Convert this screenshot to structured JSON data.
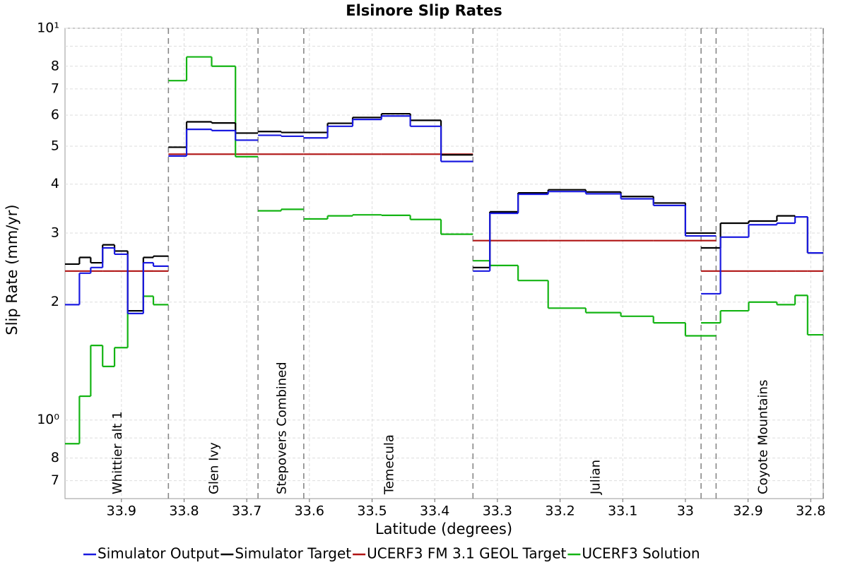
{
  "chart_data": {
    "type": "step",
    "title": "Elsinore Slip Rates",
    "x_label": "Latitude (degrees)",
    "y_label": "Slip Rate (mm/yr)",
    "log_y": true,
    "grid": true,
    "legend": "bottom",
    "xlim": [
      33.99,
      32.78
    ],
    "xticks": [
      33.9,
      33.8,
      33.7,
      33.6,
      33.5,
      33.4,
      33.3,
      33.2,
      33.1,
      {
        "value": 33.0,
        "label": "33"
      },
      32.9,
      32.8
    ],
    "ylim": [
      0.63,
      10
    ],
    "yticks": [
      {
        "value": 0.7,
        "label": "7"
      },
      {
        "value": 0.8,
        "label": "8"
      },
      {
        "value": 1,
        "label": "10⁰"
      },
      2,
      3,
      4,
      5,
      6,
      7,
      8,
      {
        "value": 10,
        "label": "10¹"
      }
    ],
    "yminor": [
      0.9,
      9
    ],
    "sections": [
      {
        "label": "Whittier alt 1",
        "edges": [
          33.99,
          33.967,
          33.949,
          33.93,
          33.911,
          33.89,
          33.865,
          33.849,
          33.825
        ]
      },
      {
        "label": "Glen Ivy",
        "edges": [
          33.825,
          33.796,
          33.756,
          33.718,
          33.682
        ]
      },
      {
        "label": "Stepovers Combined",
        "edges": [
          33.682,
          33.645,
          33.609
        ]
      },
      {
        "label": "Temecula",
        "edges": [
          33.609,
          33.571,
          33.531,
          33.485,
          33.439,
          33.39,
          33.339
        ]
      },
      {
        "label": "Julian",
        "edges": [
          33.339,
          33.312,
          33.267,
          33.219,
          33.159,
          33.103,
          33.051,
          33.0,
          32.951
        ]
      },
      {
        "label": "Coyote Mountains",
        "edges": [
          32.975,
          32.944,
          32.899,
          32.854,
          32.825,
          32.805,
          32.78
        ]
      }
    ],
    "series": [
      {
        "name": "Simulator Output",
        "color": "#1a1ae0",
        "values": [
          [
            1.97,
            2.37,
            2.45,
            2.75,
            2.65,
            1.87,
            2.52,
            2.47
          ],
          [
            4.72,
            5.52,
            5.48,
            5.18
          ],
          [
            5.33,
            5.3
          ],
          [
            5.25,
            5.62,
            5.85,
            5.97,
            5.62,
            4.57
          ],
          [
            2.4,
            3.37,
            3.77,
            3.83,
            3.78,
            3.67,
            3.53,
            2.95
          ],
          [
            2.1,
            2.93,
            3.15,
            3.18,
            3.3,
            2.67
          ]
        ]
      },
      {
        "name": "Simulator Target",
        "color": "#000000",
        "values": [
          [
            2.5,
            2.6,
            2.52,
            2.8,
            2.7,
            1.9,
            2.6,
            2.62
          ],
          [
            4.97,
            5.77,
            5.73,
            5.4
          ],
          [
            5.45,
            5.42
          ],
          [
            5.42,
            5.72,
            5.92,
            6.05,
            5.82,
            4.75
          ],
          [
            2.45,
            3.4,
            3.8,
            3.87,
            3.82,
            3.72,
            3.58,
            3.0
          ],
          [
            2.75,
            3.18,
            3.22,
            3.32,
            3.3,
            2.67
          ]
        ]
      },
      {
        "name": "UCERF3 FM 3.1 GEOL Target",
        "color": "#b01414",
        "values": [
          [
            2.4,
            2.4,
            2.4,
            2.4,
            2.4,
            2.4,
            2.4,
            2.4
          ],
          [
            4.77,
            4.77,
            4.77,
            4.77
          ],
          [
            4.77,
            4.77
          ],
          [
            4.77,
            4.77,
            4.77,
            4.77,
            4.77,
            4.77
          ],
          [
            2.87,
            2.87,
            2.87,
            2.87,
            2.87,
            2.87,
            2.87,
            2.87
          ],
          [
            2.4,
            2.4,
            2.4,
            2.4,
            2.4,
            2.4
          ]
        ]
      },
      {
        "name": "UCERF3 Solution",
        "color": "#14b414",
        "values": [
          [
            0.87,
            1.15,
            1.55,
            1.37,
            1.53,
            1.9,
            2.07,
            1.97
          ],
          [
            7.35,
            8.45,
            8.0,
            4.7
          ],
          [
            3.42,
            3.45
          ],
          [
            3.26,
            3.32,
            3.34,
            3.33,
            3.25,
            2.98
          ],
          [
            2.55,
            2.48,
            2.27,
            1.93,
            1.88,
            1.84,
            1.77,
            1.64
          ],
          [
            1.77,
            1.9,
            2.0,
            1.97,
            2.08,
            1.65
          ]
        ]
      }
    ]
  }
}
